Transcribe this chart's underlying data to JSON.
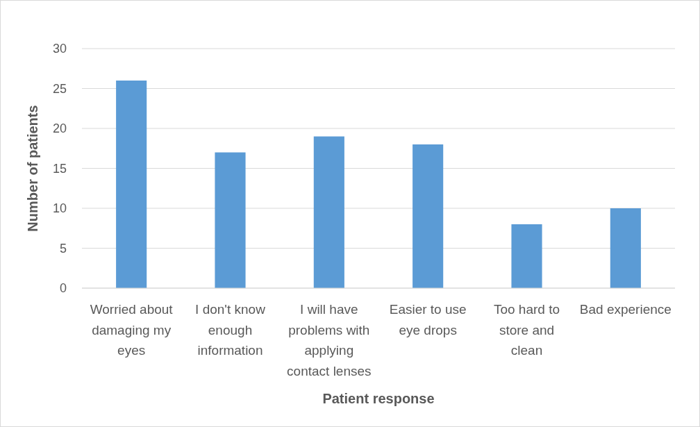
{
  "chart_data": {
    "type": "bar",
    "xlabel": "Patient response",
    "ylabel": "Number of patients",
    "categories": [
      "Worried about damaging  my eyes",
      "I don't know enough information",
      "I will have problems with applying contact lenses",
      "Easier to use eye drops",
      "Too hard to store and clean",
      "Bad experience"
    ],
    "values": [
      26,
      17,
      19,
      18,
      8,
      10
    ],
    "color": "#5b9bd5",
    "ylim": [
      0,
      30
    ],
    "yticks": [
      0,
      5,
      10,
      15,
      20,
      25,
      30
    ],
    "grid": "y"
  }
}
